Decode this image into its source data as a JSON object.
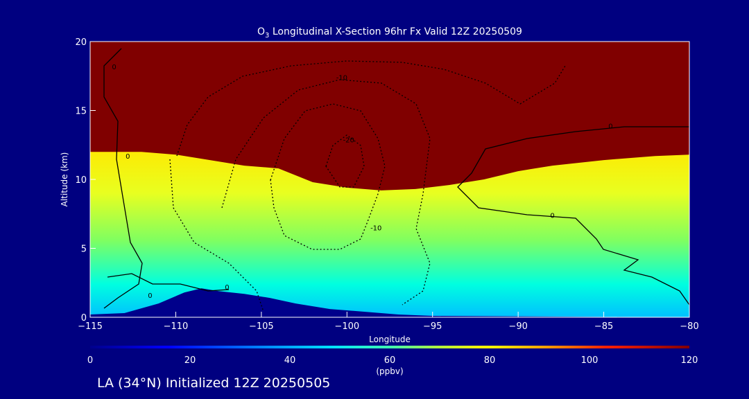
{
  "chart_data": {
    "type": "heatmap",
    "title_prefix": "O",
    "title_sub": "3",
    "title_rest": " Longitudinal X-Section 96hr  Fx Valid 12Z 20250509",
    "xlabel": "Longitude",
    "ylabel": "Altitude (km)",
    "xlim": [
      -115,
      -80
    ],
    "ylim": [
      0,
      20
    ],
    "xticks": [
      "-115",
      "-110",
      "-105",
      "-100",
      "-95",
      "-90",
      "-85",
      "-80"
    ],
    "xtick_values": [
      -115,
      -110,
      -105,
      -100,
      -95,
      -90,
      -85,
      -80
    ],
    "yticks": [
      "0",
      "5",
      "10",
      "15",
      "20"
    ],
    "ytick_values": [
      0,
      5,
      10,
      15,
      20
    ],
    "colorbar": {
      "min": 0,
      "max": 120,
      "ticks": [
        "0",
        "20",
        "40",
        "60",
        "80",
        "100",
        "120"
      ],
      "tick_values": [
        0,
        20,
        40,
        60,
        80,
        100,
        120
      ],
      "unit": "(ppbv)"
    },
    "tropopause_km": [
      [
        -115,
        12.0
      ],
      [
        -112,
        12.0
      ],
      [
        -110,
        11.8
      ],
      [
        -108,
        11.4
      ],
      [
        -106,
        11.0
      ],
      [
        -104,
        10.8
      ],
      [
        -102,
        9.8
      ],
      [
        -100,
        9.4
      ],
      [
        -98,
        9.2
      ],
      [
        -96,
        9.3
      ],
      [
        -94,
        9.6
      ],
      [
        -92,
        10.0
      ],
      [
        -90,
        10.6
      ],
      [
        -88,
        11.0
      ],
      [
        -85,
        11.4
      ],
      [
        -82,
        11.7
      ],
      [
        -80,
        11.8
      ]
    ],
    "terrain_km": [
      [
        -115,
        0.2
      ],
      [
        -113,
        0.3
      ],
      [
        -111,
        1.0
      ],
      [
        -109.5,
        1.8
      ],
      [
        -108.5,
        2.1
      ],
      [
        -107.5,
        1.9
      ],
      [
        -106,
        1.7
      ],
      [
        -104.5,
        1.4
      ],
      [
        -103,
        1.0
      ],
      [
        -101,
        0.6
      ],
      [
        -99,
        0.4
      ],
      [
        -97,
        0.2
      ],
      [
        -95,
        0.1
      ],
      [
        -80,
        0.0
      ]
    ],
    "contour_labels": [
      {
        "text": "-10",
        "x": -100.3,
        "y": 17.2
      },
      {
        "text": "-20",
        "x": -99.9,
        "y": 12.7
      },
      {
        "text": "-10",
        "x": -98.3,
        "y": 6.3
      },
      {
        "text": "0",
        "x": -112.8,
        "y": 11.5
      },
      {
        "text": "0",
        "x": -113.6,
        "y": 18.0
      },
      {
        "text": "0",
        "x": -107.0,
        "y": 2.0
      },
      {
        "text": "0",
        "x": -84.6,
        "y": 13.7
      },
      {
        "text": "0",
        "x": -88.0,
        "y": 7.2
      },
      {
        "text": "0",
        "x": -111.5,
        "y": 1.4
      }
    ]
  },
  "footer": "LA (34°N) Initialized 12Z 20250505"
}
